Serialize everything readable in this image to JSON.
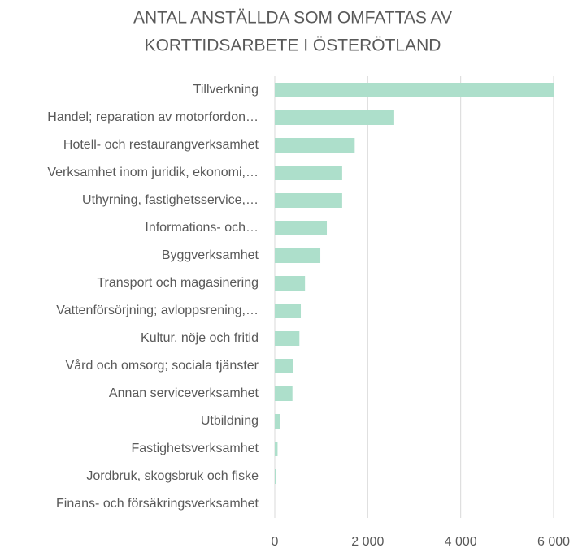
{
  "chart_data": {
    "type": "bar",
    "orientation": "horizontal",
    "title": [
      "ANTAL ANSTÄLLDA SOM OMFATTAS AV",
      "KORTTIDSARBETE I ÖSTERÖTLAND"
    ],
    "categories": [
      "Tillverkning",
      "Handel; reparation av motorfordon…",
      "Hotell- och restaurangverksamhet",
      "Verksamhet inom juridik, ekonomi,…",
      "Uthyrning, fastighetsservice,…",
      "Informations- och…",
      "Byggverksamhet",
      "Transport och magasinering",
      "Vattenförsörjning; avloppsrening,…",
      "Kultur, nöje och fritid",
      "Vård och omsorg; sociala tjänster",
      "Annan serviceverksamhet",
      "Utbildning",
      "Fastighetsverksamhet",
      "Jordbruk, skogsbruk och fiske",
      "Finans- och försäkringsverksamhet"
    ],
    "values": [
      6000,
      2570,
      1720,
      1450,
      1450,
      1120,
      980,
      650,
      560,
      530,
      390,
      380,
      120,
      60,
      20,
      0
    ],
    "color": "#addfcb",
    "xlim": [
      0,
      6000
    ],
    "xticks": [
      0,
      {
        "value": 2000,
        "label": "2 000"
      },
      {
        "value": 4000,
        "label": "4 000"
      },
      {
        "value": 6000,
        "label": "6 000"
      }
    ],
    "grid": true
  }
}
